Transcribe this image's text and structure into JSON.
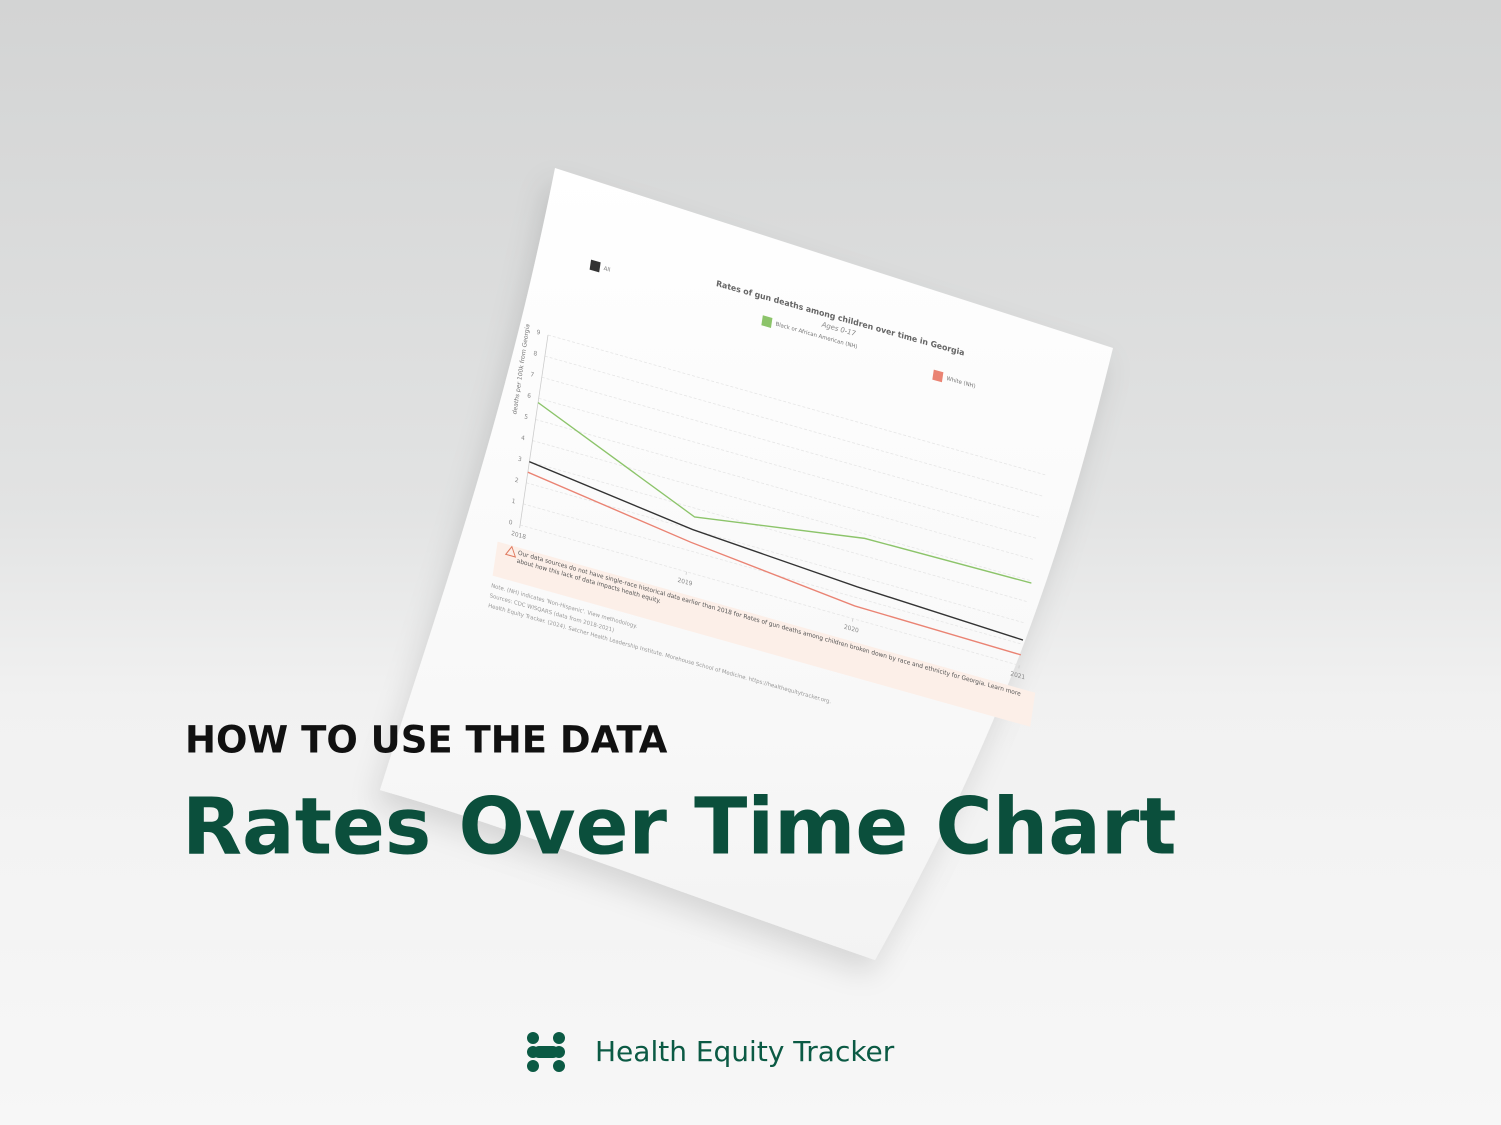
{
  "header": {
    "eyebrow": "HOW TO USE THE DATA",
    "title": "Rates Over Time Chart"
  },
  "brand": {
    "name": "Health Equity Tracker"
  },
  "chart_data": {
    "type": "line",
    "title": "Rates of gun deaths among children over time in Georgia",
    "subtitle": "Ages 0-17",
    "y_label": "deaths per 100k from Georgia",
    "x": [
      2018,
      2019,
      2020,
      2021
    ],
    "xlim": [
      2018,
      2021
    ],
    "xticks": [
      2018,
      2019,
      2020,
      2021
    ],
    "ylim": [
      0,
      9
    ],
    "yticks": [
      0,
      1,
      2,
      3,
      4,
      5,
      6,
      7,
      8,
      9
    ],
    "grid": true,
    "series": [
      {
        "name": "All",
        "color": "#333333",
        "values": [
          3.0,
          2.0,
          1.5,
          1.2
        ]
      },
      {
        "name": "Black or African American (NH)",
        "color": "#8cc46a",
        "values": [
          5.8,
          2.6,
          3.8,
          3.9
        ]
      },
      {
        "name": "White (NH)",
        "color": "#ea8373",
        "values": [
          2.5,
          1.4,
          0.6,
          0.5
        ]
      }
    ]
  },
  "note": {
    "alert": "Our data sources do not have single-race historical data earlier than 2018 for Rates of gun deaths among children broken down by race and ethnicity for Georgia. Learn more about how this lack of data impacts health equity.",
    "footnotes": [
      "Note. (NH) indicates 'Non-Hispanic'. View methodology.",
      "Sources: CDC WISQARS (data from 2018-2021)",
      "Health Equity Tracker. (2024). Satcher Health Leadership Institute. Morehouse School of Medicine. https://healthequitytracker.org."
    ]
  }
}
